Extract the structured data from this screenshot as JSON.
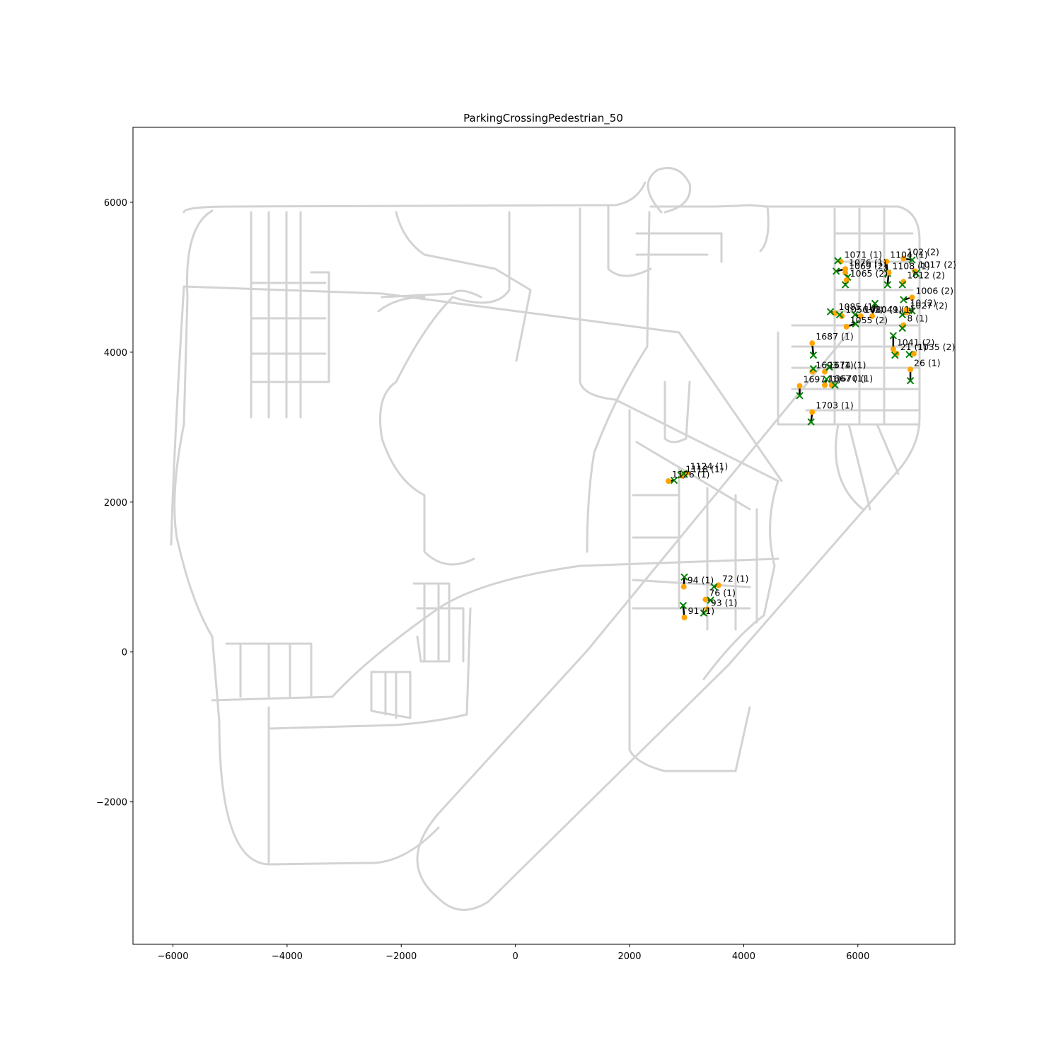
{
  "chart_data": {
    "type": "scatter",
    "title": "ParkingCrossingPedestrian_50",
    "xlabel": "",
    "ylabel": "",
    "xlim": [
      -6700,
      7700
    ],
    "ylim": [
      -3900,
      7000
    ],
    "x_ticks": [
      -6000,
      -4000,
      -2000,
      0,
      2000,
      4000,
      6000
    ],
    "y_ticks": [
      -2000,
      0,
      2000,
      4000,
      6000
    ],
    "x_tick_labels": [
      "−6000",
      "−4000",
      "−2000",
      "0",
      "2000",
      "4000",
      "6000"
    ],
    "y_tick_labels": [
      "−2000",
      "0",
      "2000",
      "4000",
      "6000"
    ],
    "grid": false,
    "colors": {
      "road": "#d3d3d3",
      "start_marker": "#ffa500",
      "end_marker": "#008000",
      "path": "#000000"
    },
    "markers": {
      "start": "circle",
      "end": "x"
    },
    "points": [
      {
        "label": "102 (2)",
        "x": 6800,
        "y": 5250,
        "ex": 6950,
        "ey": 5230
      },
      {
        "label": "1104 (1)",
        "x": 6500,
        "y": 5210,
        "ex": 6520,
        "ey": 5050
      },
      {
        "label": "1071 (1)",
        "x": 5700,
        "y": 5210,
        "ex": 5650,
        "ey": 5220
      },
      {
        "label": "1017 (2)",
        "x": 7000,
        "y": 5080,
        "ex": 7020,
        "ey": 5050
      },
      {
        "label": "1076 (1)",
        "x": 5780,
        "y": 5110,
        "ex": 5620,
        "ey": 5080
      },
      {
        "label": "1069 (2)",
        "x": 5780,
        "y": 5060,
        "ex": 5820,
        "ey": 5000
      },
      {
        "label": "1108 (1)",
        "x": 6540,
        "y": 5060,
        "ex": 6520,
        "ey": 4900
      },
      {
        "label": "1065 (2)",
        "x": 5800,
        "y": 4960,
        "ex": 5780,
        "ey": 4900
      },
      {
        "label": "1012 (2)",
        "x": 6800,
        "y": 4940,
        "ex": 6780,
        "ey": 4900
      },
      {
        "label": "1006 (2)",
        "x": 6950,
        "y": 4730,
        "ex": 6800,
        "ey": 4700
      },
      {
        "label": "10 (2)",
        "x": 6850,
        "y": 4570,
        "ex": 6950,
        "ey": 4550
      },
      {
        "label": "1027 (2)",
        "x": 6850,
        "y": 4530,
        "ex": 6780,
        "ey": 4500
      },
      {
        "label": "1085 (1)",
        "x": 5600,
        "y": 4520,
        "ex": 5520,
        "ey": 4540
      },
      {
        "label": "1056 (1)",
        "x": 5720,
        "y": 4480,
        "ex": 5680,
        "ey": 4500
      },
      {
        "label": "1080 (1)",
        "x": 6050,
        "y": 4480,
        "ex": 5950,
        "ey": 4500
      },
      {
        "label": "1049 (1)",
        "x": 6250,
        "y": 4480,
        "ex": 6300,
        "ey": 4650
      },
      {
        "label": "1055 (2)",
        "x": 5800,
        "y": 4340,
        "ex": 5960,
        "ey": 4380
      },
      {
        "label": "8 (1)",
        "x": 6800,
        "y": 4360,
        "ex": 6780,
        "ey": 4320
      },
      {
        "label": "1687 (1)",
        "x": 5200,
        "y": 4120,
        "ex": 5220,
        "ey": 3960
      },
      {
        "label": "1041 (2)",
        "x": 6620,
        "y": 4040,
        "ex": 6620,
        "ey": 4220
      },
      {
        "label": "21 (1)",
        "x": 6680,
        "y": 3980,
        "ex": 6650,
        "ey": 3960
      },
      {
        "label": "1035 (2)",
        "x": 6980,
        "y": 3980,
        "ex": 6900,
        "ey": 3970
      },
      {
        "label": "26 (1)",
        "x": 6920,
        "y": 3770,
        "ex": 6920,
        "ey": 3620
      },
      {
        "label": "1693 (1)",
        "x": 5200,
        "y": 3740,
        "ex": 5220,
        "ey": 3780
      },
      {
        "label": "1674 (1)",
        "x": 5420,
        "y": 3740,
        "ex": 5500,
        "ey": 3800
      },
      {
        "label": "1697 (1)",
        "x": 4980,
        "y": 3550,
        "ex": 4980,
        "ey": 3420
      },
      {
        "label": "1667 (1)",
        "x": 5420,
        "y": 3560,
        "ex": 5450,
        "ey": 3640
      },
      {
        "label": "1670 (1)",
        "x": 5540,
        "y": 3560,
        "ex": 5600,
        "ey": 3560
      },
      {
        "label": "1703 (1)",
        "x": 5200,
        "y": 3200,
        "ex": 5180,
        "ey": 3070
      },
      {
        "label": "1124 (1)",
        "x": 3000,
        "y": 2390,
        "ex": 2900,
        "ey": 2360
      },
      {
        "label": "1118 (1)",
        "x": 2920,
        "y": 2350,
        "ex": 2950,
        "ey": 2380
      },
      {
        "label": "1126 (1)",
        "x": 2680,
        "y": 2280,
        "ex": 2780,
        "ey": 2290
      },
      {
        "label": "72 (1)",
        "x": 3560,
        "y": 890,
        "ex": 3480,
        "ey": 870
      },
      {
        "label": "94 (1)",
        "x": 2950,
        "y": 870,
        "ex": 2960,
        "ey": 1000
      },
      {
        "label": "76 (1)",
        "x": 3330,
        "y": 700,
        "ex": 3420,
        "ey": 690
      },
      {
        "label": "93 (1)",
        "x": 3360,
        "y": 570,
        "ex": 3300,
        "ey": 520
      },
      {
        "label": "91 (1)",
        "x": 2960,
        "y": 460,
        "ex": 2940,
        "ey": 620
      }
    ]
  }
}
